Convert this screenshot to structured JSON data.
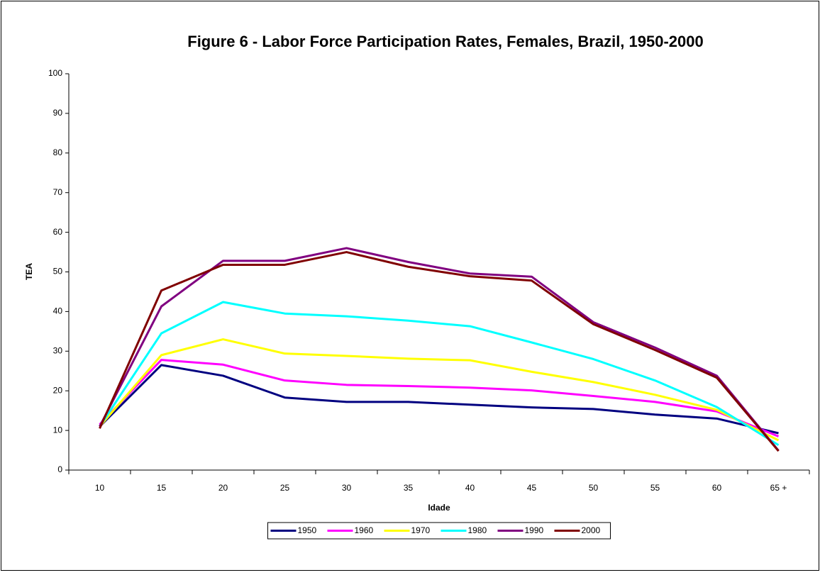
{
  "chart_data": {
    "type": "line",
    "title": "Figure 6 - Labor Force Participation Rates, Females, Brazil, 1950-2000",
    "x_label": "Idade",
    "y_label": "TEA",
    "categories": [
      "10",
      "15",
      "20",
      "25",
      "30",
      "35",
      "40",
      "45",
      "50",
      "55",
      "60",
      "65 +"
    ],
    "ylim": [
      0,
      100
    ],
    "yticks": [
      0,
      10,
      20,
      30,
      40,
      50,
      60,
      70,
      80,
      90,
      100
    ],
    "grid": false,
    "legend": "bottom",
    "series": [
      {
        "name": "1950",
        "color": "#000080",
        "values": [
          11,
          26.5,
          23.8,
          18.3,
          17.2,
          17.2,
          16.5,
          15.8,
          15.4,
          14,
          13,
          9.3
        ]
      },
      {
        "name": "1960",
        "color": "#ff00ff",
        "values": [
          11.5,
          27.8,
          26.6,
          22.6,
          21.5,
          21.2,
          20.8,
          20.1,
          18.7,
          17.2,
          14.8,
          8.5
        ]
      },
      {
        "name": "1970",
        "color": "#ffff00",
        "values": [
          11,
          29,
          33,
          29.4,
          28.8,
          28.1,
          27.7,
          24.8,
          22.2,
          19,
          15.2,
          7.5
        ]
      },
      {
        "name": "1980",
        "color": "#00ffff",
        "values": [
          11,
          34.5,
          42.4,
          39.5,
          38.8,
          37.7,
          36.3,
          32.2,
          28,
          22.6,
          15.9,
          6.3
        ]
      },
      {
        "name": "1990",
        "color": "#800080",
        "values": [
          11,
          41.3,
          52.8,
          52.8,
          56,
          52.5,
          49.6,
          48.8,
          37.3,
          30.9,
          23.8,
          4.9
        ]
      },
      {
        "name": "2000",
        "color": "#800000",
        "values": [
          10.5,
          45.3,
          51.8,
          51.8,
          55,
          51.3,
          48.9,
          47.8,
          36.8,
          30.3,
          23.3,
          4.8
        ]
      }
    ]
  }
}
